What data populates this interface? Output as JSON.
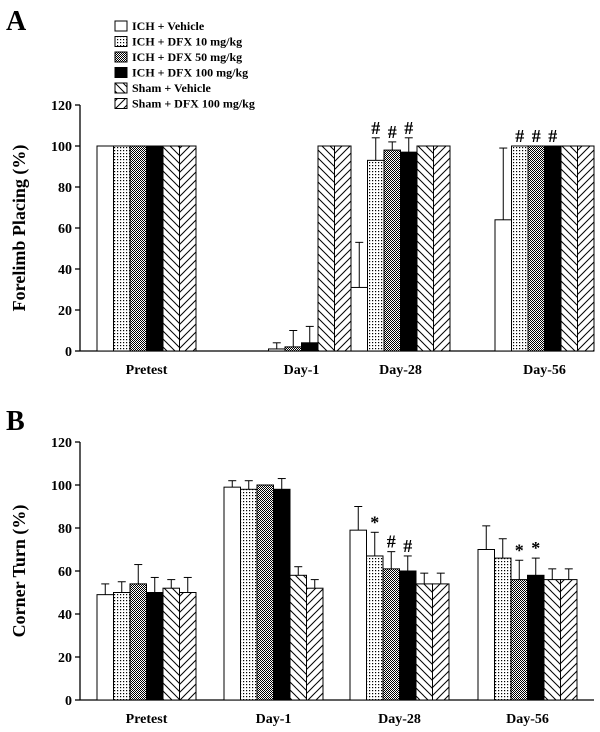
{
  "figure": {
    "panel_a_label": "A",
    "panel_b_label": "B"
  },
  "legend": {
    "entries": [
      {
        "label": "ICH + Vehicle",
        "pattern": "white"
      },
      {
        "label": "ICH + DFX 10 mg/kg",
        "pattern": "dots"
      },
      {
        "label": "ICH + DFX 50 mg/kg",
        "pattern": "dense"
      },
      {
        "label": "ICH + DFX 100 mg/kg",
        "pattern": "black"
      },
      {
        "label": "Sham + Vehicle",
        "pattern": "backslash"
      },
      {
        "label": "Sham + DFX 100 mg/kg",
        "pattern": "slash"
      }
    ]
  },
  "chart_data": [
    {
      "type": "bar",
      "panel": "A",
      "title": "",
      "xlabel": "",
      "ylabel": "Forelimb Placing (%)",
      "ylim": [
        0,
        120
      ],
      "yticks": [
        "0",
        "20",
        "40",
        "60",
        "80",
        "100",
        "120"
      ],
      "categories": [
        "Pretest",
        "Day-1",
        "Day-28",
        "Day-56"
      ],
      "series": [
        {
          "name": "ICH + Vehicle",
          "values": [
            100,
            0,
            31,
            64
          ],
          "errors": [
            0,
            0,
            22,
            35
          ]
        },
        {
          "name": "ICH + DFX 10 mg/kg",
          "values": [
            100,
            1,
            93,
            100
          ],
          "errors": [
            0,
            3,
            11,
            0
          ]
        },
        {
          "name": "ICH + DFX 50 mg/kg",
          "values": [
            100,
            2,
            98,
            100
          ],
          "errors": [
            0,
            8,
            4,
            0
          ]
        },
        {
          "name": "ICH + DFX 100 mg/kg",
          "values": [
            100,
            4,
            97,
            100
          ],
          "errors": [
            0,
            8,
            7,
            0
          ]
        },
        {
          "name": "Sham + Vehicle",
          "values": [
            100,
            100,
            100,
            100
          ],
          "errors": [
            0,
            0,
            0,
            0
          ]
        },
        {
          "name": "Sham + DFX 100 mg/kg",
          "values": [
            100,
            100,
            100,
            100
          ],
          "errors": [
            0,
            0,
            0,
            0
          ]
        }
      ],
      "annotations": [
        {
          "text": "#",
          "category": "Day-28",
          "series": "ICH + DFX 10 mg/kg"
        },
        {
          "text": "#",
          "category": "Day-28",
          "series": "ICH + DFX 50 mg/kg"
        },
        {
          "text": "#",
          "category": "Day-28",
          "series": "ICH + DFX 100 mg/kg"
        },
        {
          "text": "#",
          "category": "Day-56",
          "series": "ICH + DFX 10 mg/kg"
        },
        {
          "text": "#",
          "category": "Day-56",
          "series": "ICH + DFX 50 mg/kg"
        },
        {
          "text": "#",
          "category": "Day-56",
          "series": "ICH + DFX 100 mg/kg"
        }
      ]
    },
    {
      "type": "bar",
      "panel": "B",
      "title": "",
      "xlabel": "",
      "ylabel": "Corner Turn (%)",
      "ylim": [
        0,
        120
      ],
      "yticks": [
        "0",
        "20",
        "40",
        "60",
        "80",
        "100",
        "120"
      ],
      "categories": [
        "Pretest",
        "Day-1",
        "Day-28",
        "Day-56"
      ],
      "series": [
        {
          "name": "ICH + Vehicle",
          "values": [
            49,
            99,
            79,
            70
          ],
          "errors": [
            5,
            3,
            11,
            11
          ]
        },
        {
          "name": "ICH + DFX 10 mg/kg",
          "values": [
            50,
            98,
            67,
            66
          ],
          "errors": [
            5,
            4,
            11,
            9
          ]
        },
        {
          "name": "ICH + DFX 50 mg/kg",
          "values": [
            54,
            100,
            61,
            56
          ],
          "errors": [
            9,
            0,
            8,
            9
          ]
        },
        {
          "name": "ICH + DFX 100 mg/kg",
          "values": [
            50,
            98,
            60,
            58
          ],
          "errors": [
            7,
            5,
            7,
            8
          ]
        },
        {
          "name": "Sham + Vehicle",
          "values": [
            52,
            58,
            54,
            56
          ],
          "errors": [
            4,
            4,
            5,
            5
          ]
        },
        {
          "name": "Sham + DFX 100 mg/kg",
          "values": [
            50,
            52,
            54,
            56
          ],
          "errors": [
            7,
            4,
            5,
            5
          ]
        }
      ],
      "annotations": [
        {
          "text": "*",
          "category": "Day-28",
          "series": "ICH + DFX 10 mg/kg"
        },
        {
          "text": "#",
          "category": "Day-28",
          "series": "ICH + DFX 50 mg/kg"
        },
        {
          "text": "#",
          "category": "Day-28",
          "series": "ICH + DFX 100 mg/kg"
        },
        {
          "text": "*",
          "category": "Day-56",
          "series": "ICH + DFX 50 mg/kg"
        },
        {
          "text": "*",
          "category": "Day-56",
          "series": "ICH + DFX 100 mg/kg"
        }
      ]
    }
  ]
}
